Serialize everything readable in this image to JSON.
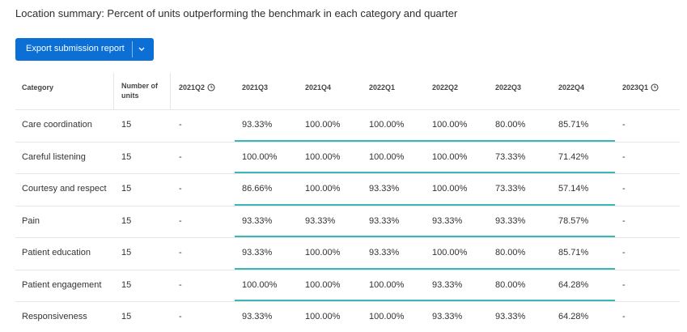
{
  "header": {
    "title": "Location summary: Percent of units outperforming the benchmark in each category and quarter"
  },
  "button": {
    "label": "Export submission report"
  },
  "table": {
    "columns": [
      "Category",
      "Number of units",
      "2021Q2",
      "2021Q3",
      "2021Q4",
      "2022Q1",
      "2022Q2",
      "2022Q3",
      "2022Q4",
      "2023Q1"
    ],
    "rows": [
      [
        "Care coordination",
        "15",
        "-",
        "93.33%",
        "100.00%",
        "100.00%",
        "100.00%",
        "80.00%",
        "85.71%",
        "-"
      ],
      [
        "Careful listening",
        "15",
        "-",
        "100.00%",
        "100.00%",
        "100.00%",
        "100.00%",
        "73.33%",
        "71.42%",
        "-"
      ],
      [
        "Courtesy and respect",
        "15",
        "-",
        "86.66%",
        "100.00%",
        "93.33%",
        "100.00%",
        "73.33%",
        "57.14%",
        "-"
      ],
      [
        "Pain",
        "15",
        "-",
        "93.33%",
        "93.33%",
        "93.33%",
        "93.33%",
        "93.33%",
        "78.57%",
        "-"
      ],
      [
        "Patient education",
        "15",
        "-",
        "93.33%",
        "100.00%",
        "93.33%",
        "100.00%",
        "80.00%",
        "85.71%",
        "-"
      ],
      [
        "Patient engagement",
        "15",
        "-",
        "100.00%",
        "100.00%",
        "100.00%",
        "93.33%",
        "80.00%",
        "64.28%",
        "-"
      ],
      [
        "Responsiveness",
        "15",
        "-",
        "93.33%",
        "100.00%",
        "100.00%",
        "93.33%",
        "93.33%",
        "64.28%",
        "-"
      ]
    ]
  }
}
